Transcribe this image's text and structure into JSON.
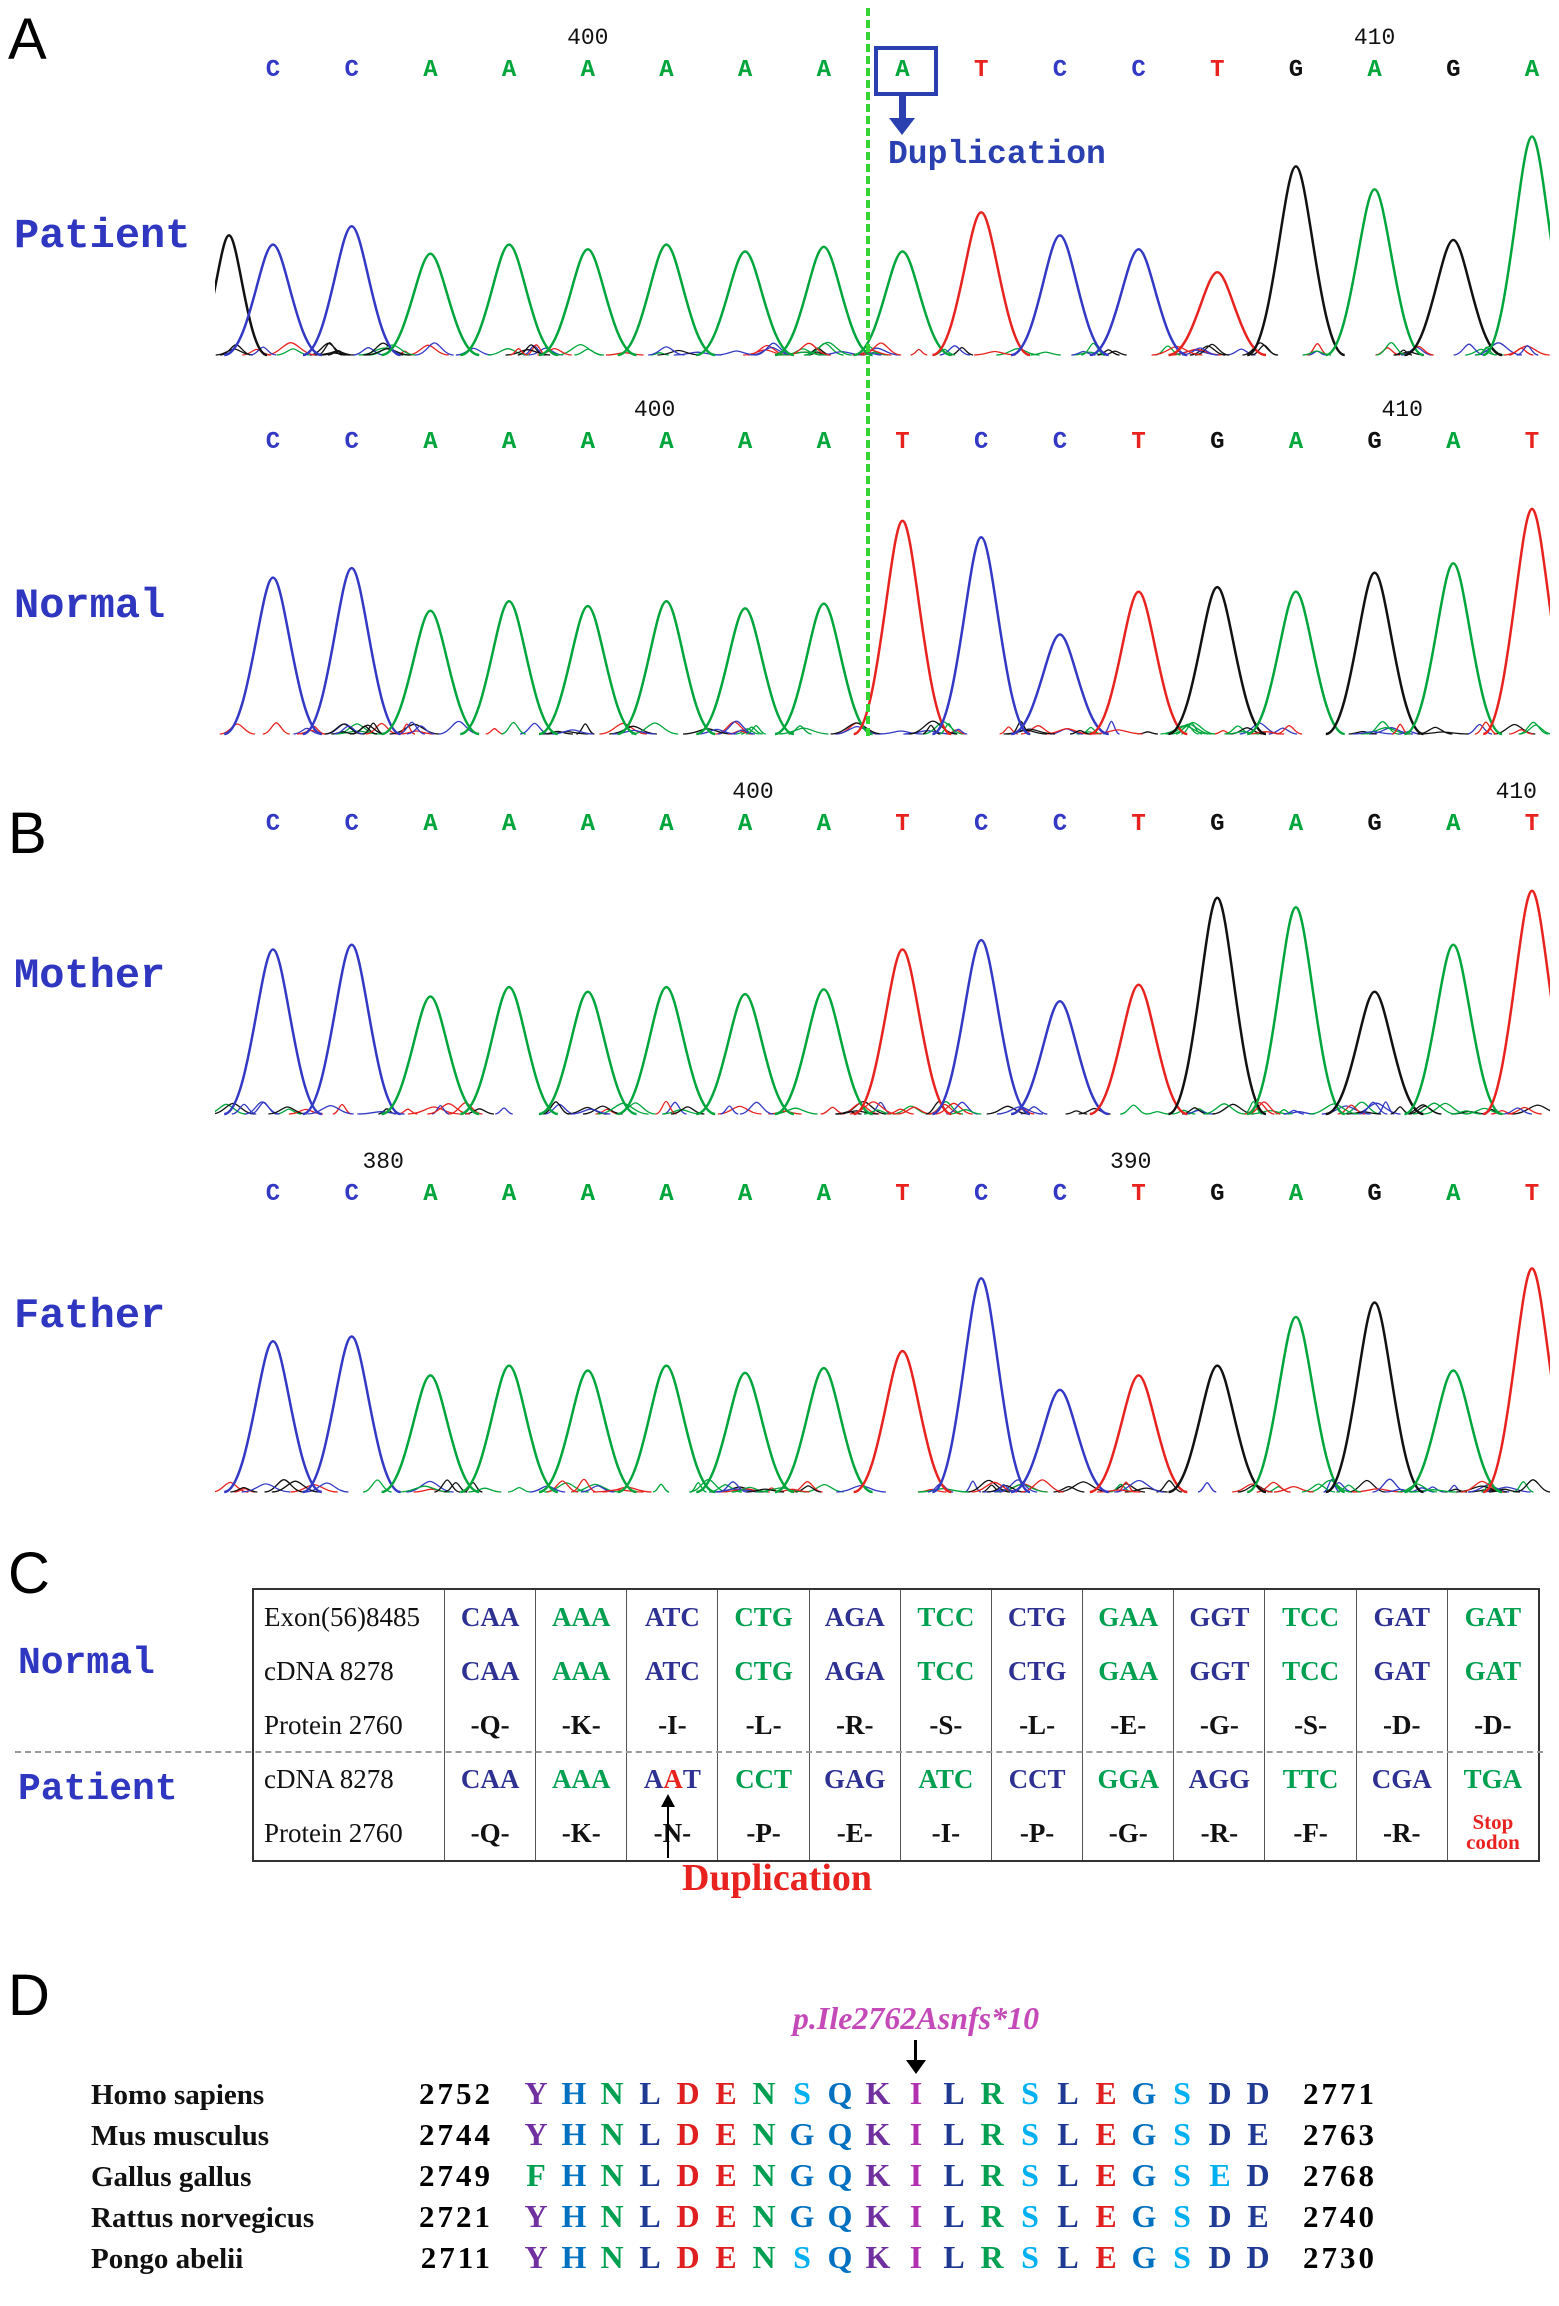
{
  "figure": {
    "panel_a_label": "A",
    "panel_b_label": "B",
    "panel_c_label": "C",
    "panel_d_label": "D"
  },
  "labels": {
    "patient": "Patient",
    "normal": "Normal",
    "mother": "Mother",
    "father": "Father"
  },
  "colors": {
    "base_A": "#00a63b",
    "base_C": "#3339c4",
    "base_G": "#111111",
    "base_T": "#e8231f",
    "codon_blue": "#2e3192",
    "codon_green": "#00a050",
    "highlight_red": "#e8231f",
    "annotation_blue": "#2a3fb0",
    "label_blue": "#2f36c0",
    "dashed_line_green": "#35d435",
    "annotation_pink": "#c44ab8"
  },
  "chart_data": [
    {
      "type": "chromatogram",
      "name": "Patient",
      "sequence": "CCAAAAAAATCCTGAGA",
      "heights": [
        0.48,
        0.56,
        0.44,
        0.48,
        0.46,
        0.48,
        0.45,
        0.47,
        0.45,
        0.62,
        0.52,
        0.46,
        0.36,
        0.82,
        0.72,
        0.5,
        0.95
      ],
      "position_labels": [
        {
          "label": "400",
          "index": 4.0
        },
        {
          "label": "410",
          "index": 14.0
        }
      ],
      "duplication_box_index": 8,
      "duplication_label": "Duplication",
      "leading_partial_peak": {
        "base": "G",
        "height": 0.52
      }
    },
    {
      "type": "chromatogram",
      "name": "Normal",
      "sequence": "CCAAAAAATCCTGAGAT",
      "heights": [
        0.66,
        0.7,
        0.52,
        0.56,
        0.54,
        0.56,
        0.53,
        0.55,
        0.9,
        0.83,
        0.42,
        0.6,
        0.62,
        0.6,
        0.68,
        0.72,
        0.95
      ],
      "position_labels": [
        {
          "label": "400",
          "index": 4.85
        },
        {
          "label": "410",
          "index": 14.35
        }
      ]
    },
    {
      "type": "chromatogram",
      "name": "Mother",
      "sequence": "CCAAAAAATCCTGAGAT",
      "heights": [
        0.7,
        0.72,
        0.5,
        0.54,
        0.52,
        0.54,
        0.51,
        0.53,
        0.7,
        0.74,
        0.48,
        0.55,
        0.92,
        0.88,
        0.52,
        0.72,
        0.95
      ],
      "position_labels": [
        {
          "label": "400",
          "index": 6.1
        },
        {
          "label": "410",
          "index": 15.8
        }
      ]
    },
    {
      "type": "chromatogram",
      "name": "Father",
      "sequence": "CCAAAAAATCCTGAGAT",
      "heights": [
        0.62,
        0.64,
        0.48,
        0.52,
        0.5,
        0.52,
        0.49,
        0.51,
        0.58,
        0.88,
        0.42,
        0.48,
        0.52,
        0.72,
        0.78,
        0.5,
        0.92
      ],
      "position_labels": [
        {
          "label": "380",
          "index": 1.4
        },
        {
          "label": "390",
          "index": 10.9
        }
      ]
    },
    {
      "type": "codon_table",
      "name": "panel_c",
      "row_labels": {
        "normal": "Normal",
        "patient": "Patient"
      },
      "row_headers": [
        "Exon(56)8485",
        "cDNA 8278",
        "Protein 2760",
        "cDNA 8278",
        "Protein 2760"
      ],
      "normal_exon": [
        "CAA",
        "AAA",
        "ATC",
        "CTG",
        "AGA",
        "TCC",
        "CTG",
        "GAA",
        "GGT",
        "TCC",
        "GAT",
        "GAT"
      ],
      "normal_cdna": [
        "CAA",
        "AAA",
        "ATC",
        "CTG",
        "AGA",
        "TCC",
        "CTG",
        "GAA",
        "GGT",
        "TCC",
        "GAT",
        "GAT"
      ],
      "normal_protein": [
        "-Q-",
        "-K-",
        "-I-",
        "-L-",
        "-R-",
        "-S-",
        "-L-",
        "-E-",
        "-G-",
        "-S-",
        "-D-",
        "-D-"
      ],
      "patient_cdna": [
        "CAA",
        "AAA",
        "AAT",
        "CCT",
        "GAG",
        "ATC",
        "CCT",
        "GGA",
        "AGG",
        "TTC",
        "CGA",
        "TGA"
      ],
      "patient_protein": [
        "-Q-",
        "-K-",
        "-N-",
        "-P-",
        "-E-",
        "-I-",
        "-P-",
        "-G-",
        "-R-",
        "-F-",
        "-R-",
        ""
      ],
      "highlight": {
        "column": 2,
        "char_index": 1
      },
      "stop_codon_lines": [
        "Stop",
        "codon"
      ],
      "duplication_label": "Duplication"
    },
    {
      "type": "alignment",
      "name": "panel_d",
      "annotation": "p.Ile2762Asnfs*10",
      "arrow_column": 10,
      "color_map": {
        "P": "#7030a0",
        "B": "#0070c0",
        "G": "#00a050",
        "N": "#1f3a93",
        "R": "#e02020",
        "C": "#00b0f0",
        "M": "#b030b0"
      },
      "rows": [
        {
          "species": "Homo sapiens",
          "start": "2752",
          "seq": "YHNLDENSQKILRSLEGSDD",
          "colors": "PBGNRRGCBPMNGCNRBCNN",
          "end": "2771"
        },
        {
          "species": "Mus musculus",
          "start": "2744",
          "seq": "YHNLDENGQKILRSLEGSDE",
          "colors": "PBGNRRGBBPMNGCNRBCNN",
          "end": "2763"
        },
        {
          "species": "Gallus gallus",
          "start": "2749",
          "seq": "FHNLDENGQKILRSLEGSED",
          "colors": "GBGNRRGBBPMNGCNRBCCN",
          "end": "2768"
        },
        {
          "species": "Rattus norvegicus",
          "start": "2721",
          "seq": "YHNLDENGQKILRSLEGSDE",
          "colors": "PBGNRRGBBPMNGCNRBCNN",
          "end": "2740"
        },
        {
          "species": "Pongo abelii",
          "start": "2711",
          "seq": "YHNLDENSQKILRSLEGSDD",
          "colors": "PBGNRRGCBPMNGCNRBCNN",
          "end": "2730"
        }
      ]
    }
  ]
}
